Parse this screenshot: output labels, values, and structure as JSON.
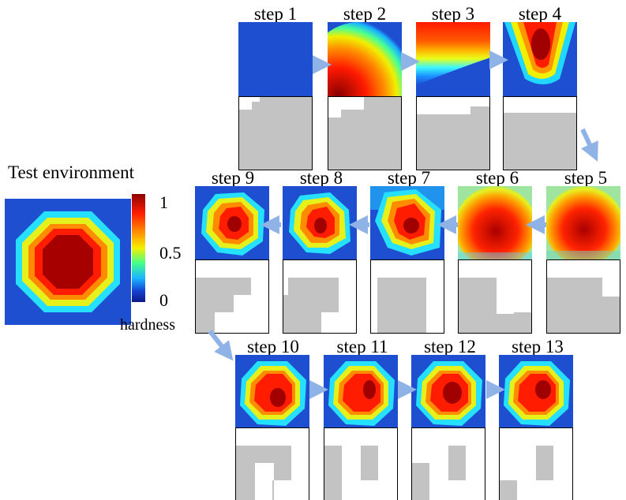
{
  "test_environment": {
    "title": "Test environment",
    "colorbar": {
      "max_label": "1",
      "mid_label": "0.5",
      "min_label": "0",
      "caption": "hardness"
    }
  },
  "steps": [
    {
      "label": "step 1"
    },
    {
      "label": "step 2"
    },
    {
      "label": "step 3"
    },
    {
      "label": "step 4"
    },
    {
      "label": "step 5"
    },
    {
      "label": "step 6"
    },
    {
      "label": "step 7"
    },
    {
      "label": "step 8"
    },
    {
      "label": "step 9"
    },
    {
      "label": "step 10"
    },
    {
      "label": "step 11"
    },
    {
      "label": "step 12"
    },
    {
      "label": "step 13"
    }
  ],
  "colors": {
    "arrow": "#8fb3e6",
    "explored_cell": "#c3c3c3",
    "unexplored_cell": "#ffffff"
  }
}
